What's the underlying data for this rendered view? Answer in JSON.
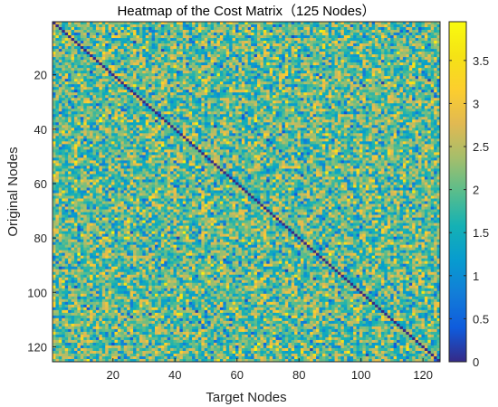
{
  "chart_data": {
    "type": "heatmap",
    "title": "Heatmap of the Cost Matrix（125 Nodes）",
    "xlabel": "Target Nodes",
    "ylabel": "Original Nodes",
    "rows": 125,
    "cols": 125,
    "xlim": [
      0.5,
      125.5
    ],
    "ylim": [
      0.5,
      125.5
    ],
    "x_ticks": [
      20,
      40,
      60,
      80,
      100,
      120
    ],
    "y_ticks": [
      20,
      40,
      60,
      80,
      100,
      120
    ],
    "y_reversed": true,
    "diagonal_value": 0,
    "offdiagonal_range": [
      0.05,
      3.95
    ],
    "color_limits": [
      0,
      3.95
    ],
    "colorbar": {
      "ticks": [
        0,
        0.5,
        1,
        1.5,
        2,
        2.5,
        3,
        3.5
      ],
      "tick_labels": [
        "0",
        "0.5",
        "1",
        "1.5",
        "2",
        "2.5",
        "3",
        "3.5"
      ]
    },
    "colormap": "parula",
    "grid": false
  }
}
